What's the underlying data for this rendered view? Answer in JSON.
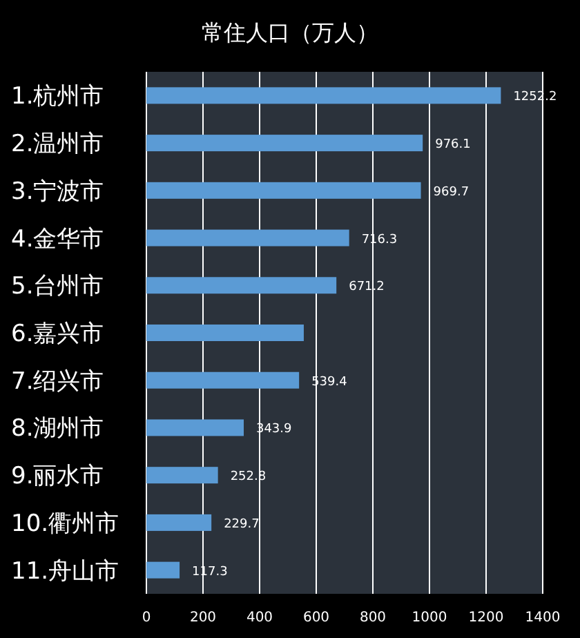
{
  "chart_data": {
    "type": "bar",
    "orientation": "horizontal",
    "title": "常住人口（万人）",
    "categories": [
      "1.杭州市",
      "2.温州市",
      "3.宁波市",
      "4.金华市",
      "5.台州市",
      "6.嘉兴市",
      "7.绍兴市",
      "8.湖州市",
      "9.丽水市",
      "10.衢州市",
      "11.舟山市"
    ],
    "values": [
      1252.2,
      976.1,
      969.7,
      716.3,
      671.2,
      556,
      539.4,
      343.9,
      252.8,
      229.7,
      117.3
    ],
    "value_labels": [
      "1252.2",
      "976.1",
      "969.7",
      "716.3",
      "671.2",
      null,
      "539.4",
      "343.9",
      "252.8",
      "229.7",
      "117.3"
    ],
    "color": "#5b9bd5",
    "xlim": [
      0,
      1400
    ],
    "xticks": [
      0,
      200,
      400,
      600,
      800,
      1000,
      1200,
      1400
    ],
    "grid": "x"
  }
}
